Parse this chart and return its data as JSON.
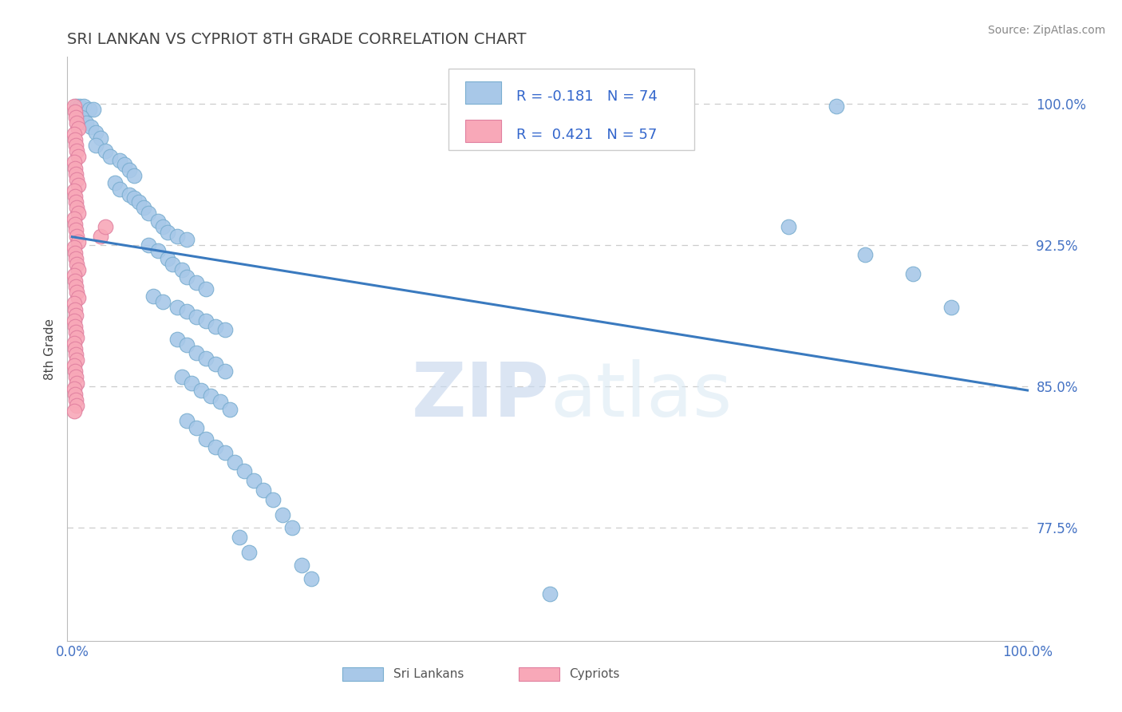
{
  "title": "SRI LANKAN VS CYPRIOT 8TH GRADE CORRELATION CHART",
  "source_text": "Source: ZipAtlas.com",
  "ylabel": "8th Grade",
  "watermark_zip": "ZIP",
  "watermark_atlas": "atlas",
  "legend": [
    {
      "label": "Sri Lankans",
      "color": "#a8c8e8",
      "R": -0.181,
      "N": 74
    },
    {
      "label": "Cypriots",
      "color": "#f8a8b8",
      "R": 0.421,
      "N": 57
    }
  ],
  "trendline": {
    "color": "#3a7abf",
    "x_start": 0.0,
    "x_end": 1.0,
    "y_start": 0.9295,
    "y_end": 0.848
  },
  "ylim": [
    0.715,
    1.025
  ],
  "xlim": [
    -0.005,
    1.005
  ],
  "yticks": [
    0.775,
    0.85,
    0.925,
    1.0
  ],
  "ytick_labels": [
    "77.5%",
    "85.0%",
    "92.5%",
    "100.0%"
  ],
  "xtick_labels": [
    "0.0%",
    "100.0%"
  ],
  "xtick_positions": [
    0.0,
    1.0
  ],
  "grid_color": "#cccccc",
  "axis_color": "#bbbbbb",
  "title_color": "#444444",
  "label_color": "#4472c4",
  "blue_dots": [
    [
      0.005,
      0.999
    ],
    [
      0.008,
      0.999
    ],
    [
      0.012,
      0.999
    ],
    [
      0.018,
      0.997
    ],
    [
      0.022,
      0.997
    ],
    [
      0.01,
      0.993
    ],
    [
      0.015,
      0.99
    ],
    [
      0.02,
      0.988
    ],
    [
      0.025,
      0.985
    ],
    [
      0.03,
      0.982
    ],
    [
      0.025,
      0.978
    ],
    [
      0.035,
      0.975
    ],
    [
      0.04,
      0.972
    ],
    [
      0.05,
      0.97
    ],
    [
      0.055,
      0.968
    ],
    [
      0.06,
      0.965
    ],
    [
      0.065,
      0.962
    ],
    [
      0.045,
      0.958
    ],
    [
      0.05,
      0.955
    ],
    [
      0.06,
      0.952
    ],
    [
      0.065,
      0.95
    ],
    [
      0.07,
      0.948
    ],
    [
      0.075,
      0.945
    ],
    [
      0.08,
      0.942
    ],
    [
      0.09,
      0.938
    ],
    [
      0.095,
      0.935
    ],
    [
      0.1,
      0.932
    ],
    [
      0.11,
      0.93
    ],
    [
      0.12,
      0.928
    ],
    [
      0.08,
      0.925
    ],
    [
      0.09,
      0.922
    ],
    [
      0.1,
      0.918
    ],
    [
      0.105,
      0.915
    ],
    [
      0.115,
      0.912
    ],
    [
      0.12,
      0.908
    ],
    [
      0.13,
      0.905
    ],
    [
      0.14,
      0.902
    ],
    [
      0.085,
      0.898
    ],
    [
      0.095,
      0.895
    ],
    [
      0.11,
      0.892
    ],
    [
      0.12,
      0.89
    ],
    [
      0.13,
      0.887
    ],
    [
      0.14,
      0.885
    ],
    [
      0.15,
      0.882
    ],
    [
      0.16,
      0.88
    ],
    [
      0.11,
      0.875
    ],
    [
      0.12,
      0.872
    ],
    [
      0.13,
      0.868
    ],
    [
      0.14,
      0.865
    ],
    [
      0.15,
      0.862
    ],
    [
      0.16,
      0.858
    ],
    [
      0.115,
      0.855
    ],
    [
      0.125,
      0.852
    ],
    [
      0.135,
      0.848
    ],
    [
      0.145,
      0.845
    ],
    [
      0.155,
      0.842
    ],
    [
      0.165,
      0.838
    ],
    [
      0.12,
      0.832
    ],
    [
      0.13,
      0.828
    ],
    [
      0.14,
      0.822
    ],
    [
      0.15,
      0.818
    ],
    [
      0.16,
      0.815
    ],
    [
      0.17,
      0.81
    ],
    [
      0.18,
      0.805
    ],
    [
      0.19,
      0.8
    ],
    [
      0.2,
      0.795
    ],
    [
      0.21,
      0.79
    ],
    [
      0.22,
      0.782
    ],
    [
      0.23,
      0.775
    ],
    [
      0.175,
      0.77
    ],
    [
      0.185,
      0.762
    ],
    [
      0.24,
      0.755
    ],
    [
      0.25,
      0.748
    ],
    [
      0.5,
      0.74
    ],
    [
      0.62,
      0.999
    ],
    [
      0.8,
      0.999
    ],
    [
      0.75,
      0.935
    ],
    [
      0.83,
      0.92
    ],
    [
      0.88,
      0.91
    ],
    [
      0.92,
      0.892
    ]
  ],
  "pink_dots": [
    [
      0.002,
      0.999
    ],
    [
      0.003,
      0.996
    ],
    [
      0.004,
      0.993
    ],
    [
      0.005,
      0.99
    ],
    [
      0.006,
      0.987
    ],
    [
      0.002,
      0.984
    ],
    [
      0.003,
      0.981
    ],
    [
      0.004,
      0.978
    ],
    [
      0.005,
      0.975
    ],
    [
      0.006,
      0.972
    ],
    [
      0.002,
      0.969
    ],
    [
      0.003,
      0.966
    ],
    [
      0.004,
      0.963
    ],
    [
      0.005,
      0.96
    ],
    [
      0.006,
      0.957
    ],
    [
      0.002,
      0.954
    ],
    [
      0.003,
      0.951
    ],
    [
      0.004,
      0.948
    ],
    [
      0.005,
      0.945
    ],
    [
      0.006,
      0.942
    ],
    [
      0.002,
      0.939
    ],
    [
      0.003,
      0.936
    ],
    [
      0.004,
      0.933
    ],
    [
      0.005,
      0.93
    ],
    [
      0.006,
      0.927
    ],
    [
      0.002,
      0.924
    ],
    [
      0.003,
      0.921
    ],
    [
      0.004,
      0.918
    ],
    [
      0.005,
      0.915
    ],
    [
      0.006,
      0.912
    ],
    [
      0.002,
      0.909
    ],
    [
      0.003,
      0.906
    ],
    [
      0.004,
      0.903
    ],
    [
      0.005,
      0.9
    ],
    [
      0.006,
      0.897
    ],
    [
      0.002,
      0.894
    ],
    [
      0.003,
      0.891
    ],
    [
      0.004,
      0.888
    ],
    [
      0.002,
      0.885
    ],
    [
      0.003,
      0.882
    ],
    [
      0.004,
      0.879
    ],
    [
      0.005,
      0.876
    ],
    [
      0.002,
      0.873
    ],
    [
      0.003,
      0.87
    ],
    [
      0.004,
      0.867
    ],
    [
      0.005,
      0.864
    ],
    [
      0.002,
      0.861
    ],
    [
      0.003,
      0.858
    ],
    [
      0.004,
      0.855
    ],
    [
      0.005,
      0.852
    ],
    [
      0.002,
      0.849
    ],
    [
      0.003,
      0.846
    ],
    [
      0.004,
      0.843
    ],
    [
      0.005,
      0.84
    ],
    [
      0.03,
      0.93
    ],
    [
      0.035,
      0.935
    ],
    [
      0.002,
      0.837
    ]
  ]
}
